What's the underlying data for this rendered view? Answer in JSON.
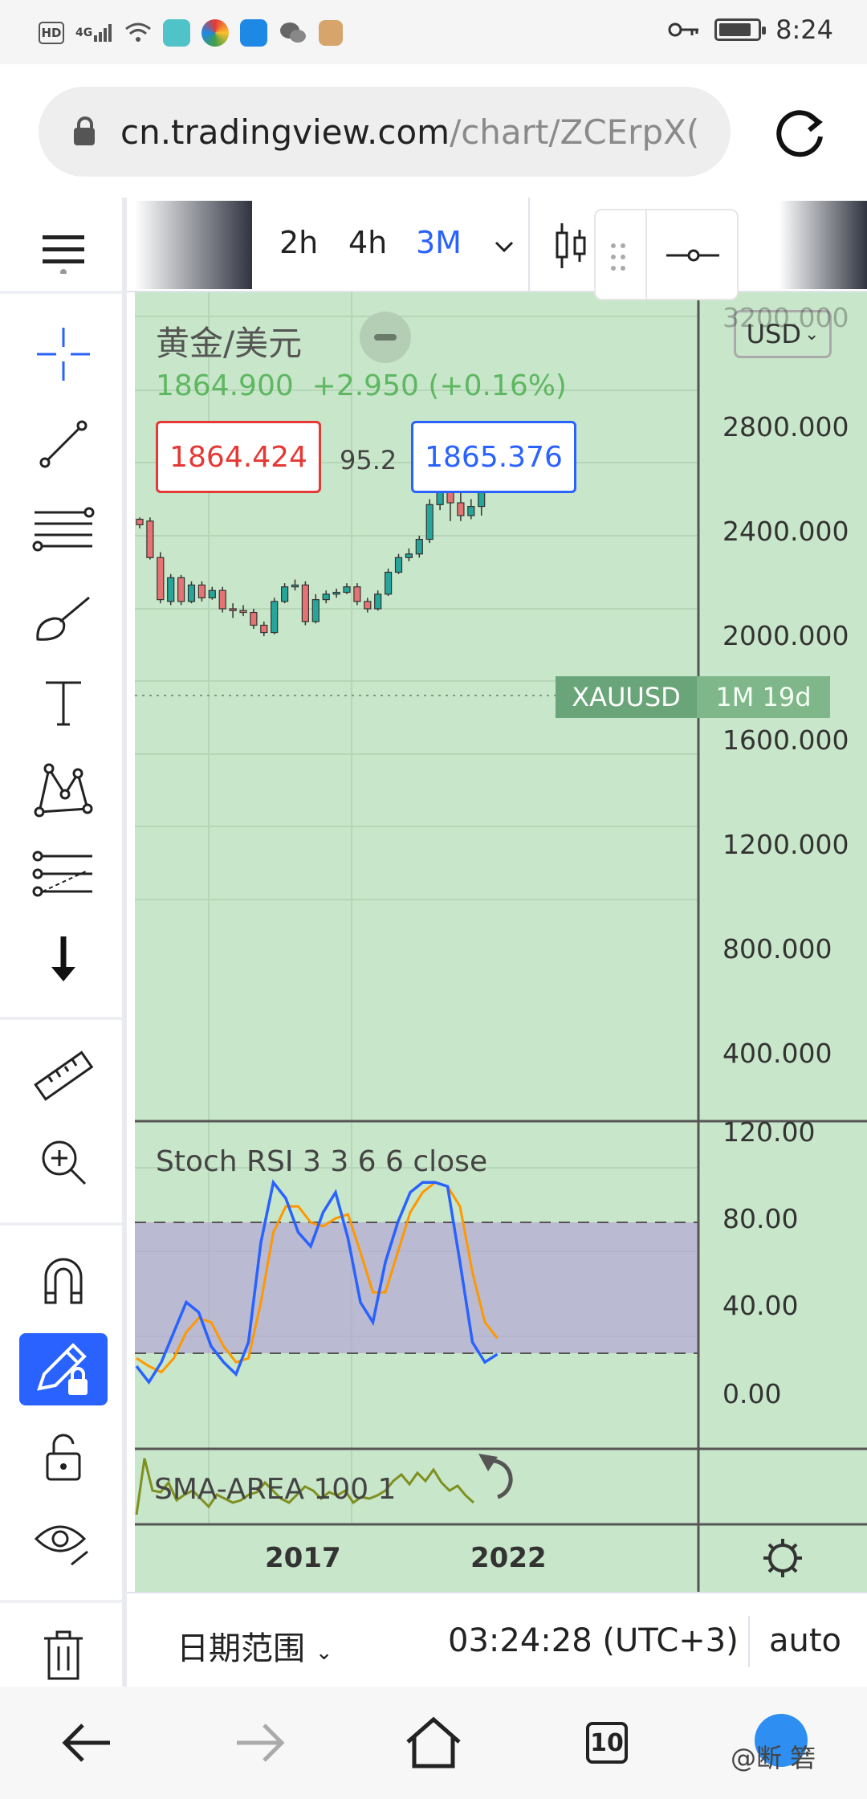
{
  "status_bar": {
    "hd": "HD",
    "network": "4G",
    "time": "8:24",
    "battery_level": 0.85,
    "app_icons": [
      "wifi-icon",
      "app-icon",
      "photos-icon",
      "edge-icon",
      "wechat-icon",
      "mascot-icon"
    ]
  },
  "browser": {
    "url_domain": "cn.tradingview.com",
    "url_path": "/chart/ZCErpX("
  },
  "toolbar": {
    "timeframes": [
      "2h",
      "4h",
      "3M"
    ],
    "active_timeframe": "3M"
  },
  "chart": {
    "symbol_title": "黄金/美元",
    "last_price": "1864.900",
    "change": "+2.950",
    "change_pct": "(+0.16%)",
    "bid": "1864.424",
    "ask": "1865.376",
    "spread": "95.2",
    "currency": "USD",
    "price_axis": [
      "3200.000",
      "2800.000",
      "2400.000",
      "2000.000",
      "1600.000",
      "1200.000",
      "800.000",
      "400.000"
    ],
    "badge_symbol": "XAUUSD",
    "badge_countdown": "1M 19d",
    "x_axis": [
      "2017",
      "2022"
    ],
    "indicator_title": "Stoch RSI 3 3 6 6 close",
    "indicator_axis": [
      "120.00",
      "80.00",
      "40.00",
      "0.00"
    ],
    "sma_title": "SMA-AREA 100 1",
    "colors": {
      "background": "#c8e6c9",
      "up": "#26a69a",
      "down": "#e57373",
      "k_line": "#2962ff",
      "d_line": "#ff9800",
      "band": "#b3a6d6",
      "accent": "#2962ff"
    }
  },
  "bottom_bar": {
    "date_range": "日期范围",
    "clock": "03:24:28 (UTC+3)",
    "scale": "auto"
  },
  "nav": {
    "tab_count": "10",
    "watermark": "@断 箬"
  }
}
